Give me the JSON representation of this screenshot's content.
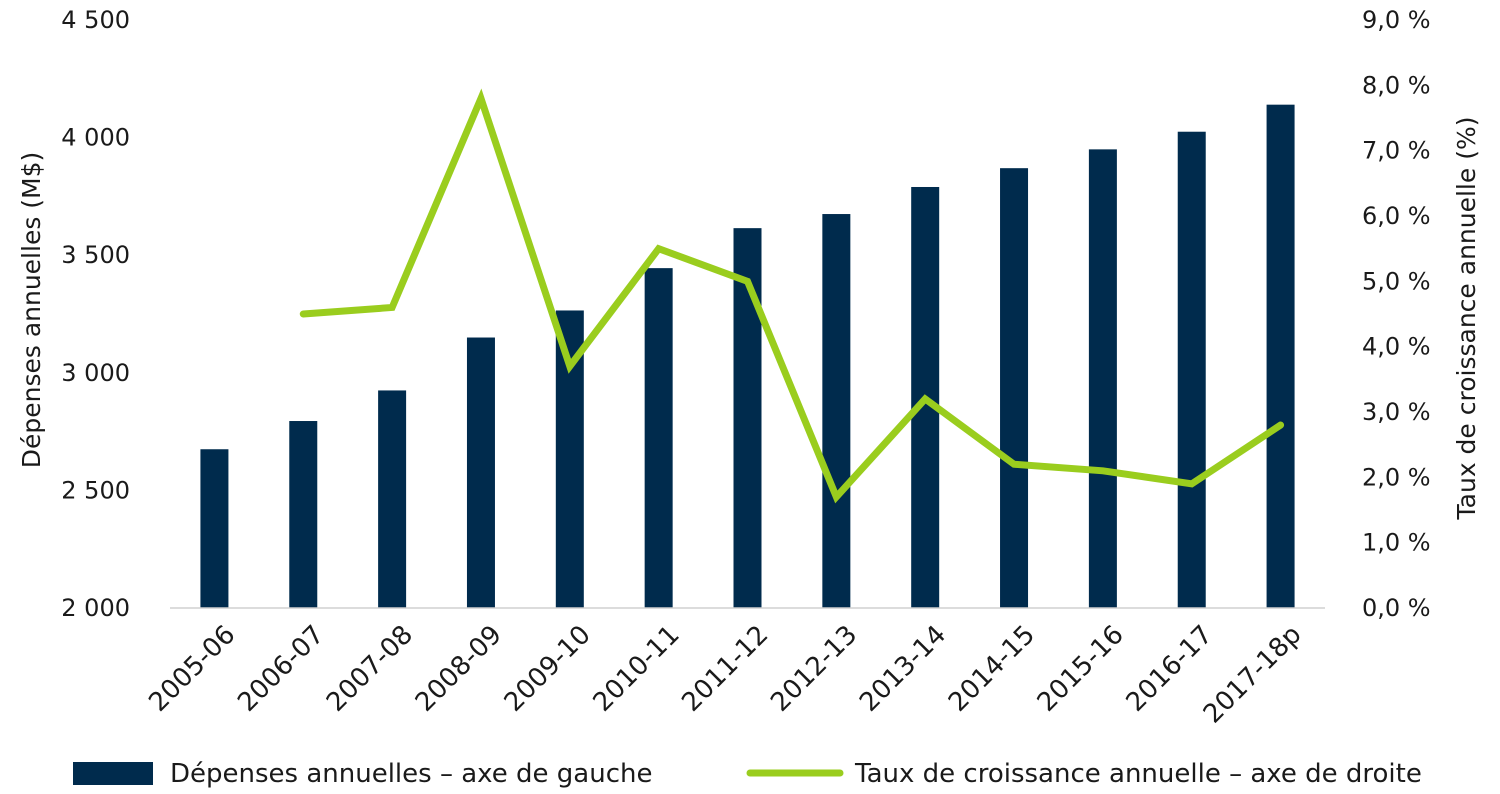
{
  "chart_data": {
    "type": "bar",
    "categories": [
      "2005-06",
      "2006-07",
      "2007-08",
      "2008-09",
      "2009-10",
      "2010-11",
      "2011-12",
      "2012-13",
      "2013-14",
      "2014-15",
      "2015-16",
      "2016-17",
      "2017-18p"
    ],
    "series": [
      {
        "name": "Dépenses annuelles – axe de gauche",
        "type": "bar",
        "axis": "left",
        "color": "#002b4d",
        "values": [
          2675,
          2795,
          2925,
          3150,
          3265,
          3445,
          3615,
          3675,
          3790,
          3870,
          3950,
          4025,
          4140
        ]
      },
      {
        "name": "Taux de croissance annuelle – axe de droite",
        "type": "line",
        "axis": "right",
        "color": "#9acd1e",
        "values": [
          null,
          4.5,
          4.6,
          7.8,
          3.7,
          5.5,
          5.0,
          1.7,
          3.2,
          2.2,
          2.1,
          1.9,
          2.8
        ]
      }
    ],
    "ylabel": "Dépenses annuelles (M$)",
    "ylabel_right": "Taux de croissance annuelle (%)",
    "ylim": [
      2000,
      4500
    ],
    "ylim_right": [
      0,
      9
    ],
    "yticks": [
      "2 000",
      "2 500",
      "3 000",
      "3 500",
      "4 000",
      "4 500"
    ],
    "yticks_right": [
      "0,0 %",
      "1,0 %",
      "2,0 %",
      "3,0 %",
      "4,0 %",
      "5,0 %",
      "6,0 %",
      "7,0 %",
      "8,0 %",
      "9,0  %"
    ],
    "grid": false,
    "legend_position": "bottom"
  }
}
